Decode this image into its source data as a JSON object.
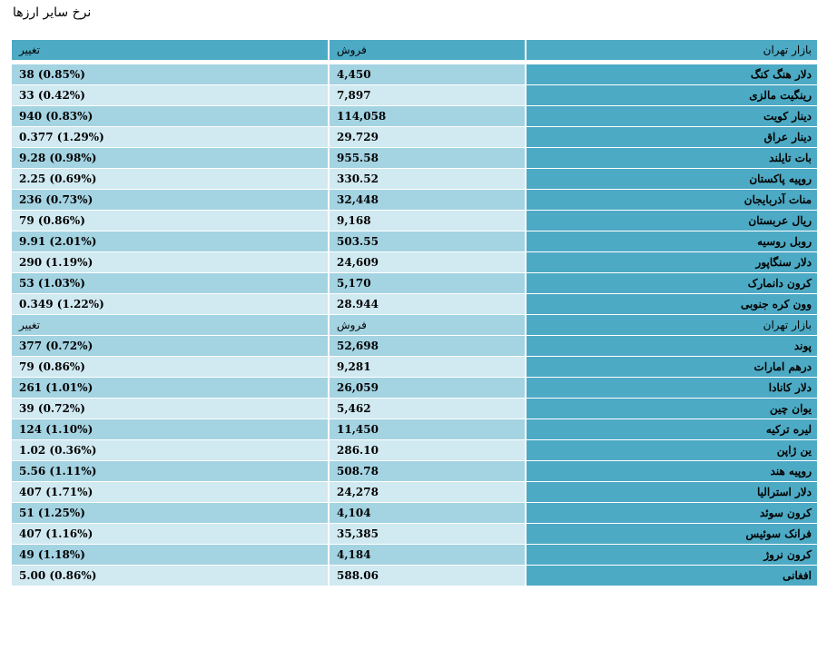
{
  "title": "نرخ سایر ارزها",
  "header": {
    "market": "بازار تهران",
    "sell": "فروش",
    "change": "تغییر"
  },
  "group1": [
    {
      "name": "دلار هنگ کنگ",
      "sell": "4,450",
      "change": "(0.85%) 38"
    },
    {
      "name": "رینگیت مالزی",
      "sell": "7,897",
      "change": "(0.42%) 33"
    },
    {
      "name": "دینار کویت",
      "sell": "114,058",
      "change": "(0.83%) 940"
    },
    {
      "name": "دینار عراق",
      "sell": "29.729",
      "change": "(1.29%) 0.377"
    },
    {
      "name": "بات تایلند",
      "sell": "955.58",
      "change": "(0.98%) 9.28"
    },
    {
      "name": "روپیه پاکستان",
      "sell": "330.52",
      "change": "(0.69%) 2.25"
    },
    {
      "name": "منات آذربایجان",
      "sell": "32,448",
      "change": "(0.73%) 236"
    },
    {
      "name": "ریال عربستان",
      "sell": "9,168",
      "change": "(0.86%) 79"
    },
    {
      "name": "روبل روسیه",
      "sell": "503.55",
      "change": "(2.01%) 9.91"
    },
    {
      "name": "دلار سنگاپور",
      "sell": "24,609",
      "change": "(1.19%) 290"
    },
    {
      "name": "کرون دانمارک",
      "sell": "5,170",
      "change": "(1.03%) 53"
    },
    {
      "name": "وون کره جنوبی",
      "sell": "28.944",
      "change": "(1.22%) 0.349"
    }
  ],
  "subheader": {
    "market": "بازار تهران",
    "sell": "فروش",
    "change": "تغییر"
  },
  "group2": [
    {
      "name": "پوند",
      "sell": "52,698",
      "change": "(0.72%) 377"
    },
    {
      "name": "درهم امارات",
      "sell": "9,281",
      "change": "(0.86%) 79"
    },
    {
      "name": "دلار کانادا",
      "sell": "26,059",
      "change": "(1.01%) 261"
    },
    {
      "name": "یوان چین",
      "sell": "5,462",
      "change": "(0.72%) 39"
    },
    {
      "name": "لیره ترکیه",
      "sell": "11,450",
      "change": "(1.10%) 124"
    },
    {
      "name": "ین ژاپن",
      "sell": "286.10",
      "change": "(0.36%) 1.02"
    },
    {
      "name": "روپیه هند",
      "sell": "508.78",
      "change": "(1.11%) 5.56"
    },
    {
      "name": "دلار استرالیا",
      "sell": "24,278",
      "change": "(1.71%) 407"
    },
    {
      "name": "کرون سوئد",
      "sell": "4,104",
      "change": "(1.25%) 51"
    },
    {
      "name": "فرانک سوئیس",
      "sell": "35,385",
      "change": "(1.16%) 407"
    },
    {
      "name": "کرون نروژ",
      "sell": "4,184",
      "change": "(1.18%) 49"
    },
    {
      "name": "افغانی",
      "sell": "588.06",
      "change": "(0.86%) 5.00"
    }
  ]
}
